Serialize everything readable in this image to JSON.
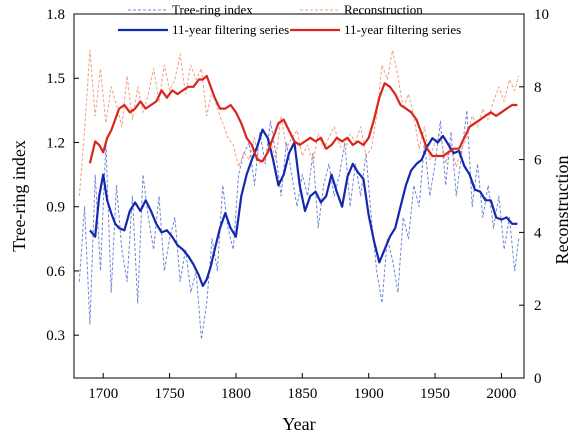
{
  "chart_data": {
    "type": "line",
    "xlabel": "Year",
    "ylabel_left": "Tree-ring index",
    "ylabel_right": "Reconstruction",
    "xlim": [
      1678,
      2017
    ],
    "ylim_left": [
      0.1,
      1.8
    ],
    "ylim_right": [
      0,
      10
    ],
    "x_ticks": [
      1700,
      1750,
      1800,
      1850,
      1900,
      1950,
      2000
    ],
    "y_ticks_left": [
      0.3,
      0.6,
      0.9,
      1.2,
      1.5,
      1.8
    ],
    "y_ticks_right": [
      0,
      2,
      4,
      6,
      8,
      10
    ],
    "grid": false,
    "legend_position": "top",
    "colors": {
      "tree_ring_dashed": "#6f86d6",
      "tree_ring_smooth": "#1427b0",
      "recon_dashed": "#f0a080",
      "recon_smooth": "#d9251c"
    },
    "series": [
      {
        "name": "Tree-ring index",
        "axis": "left",
        "style": "dashed",
        "x": [
          1682,
          1686,
          1690,
          1694,
          1698,
          1702,
          1706,
          1710,
          1714,
          1718,
          1722,
          1726,
          1730,
          1734,
          1738,
          1742,
          1746,
          1750,
          1754,
          1758,
          1762,
          1766,
          1770,
          1774,
          1778,
          1782,
          1786,
          1790,
          1794,
          1798,
          1802,
          1806,
          1810,
          1814,
          1818,
          1822,
          1826,
          1830,
          1834,
          1838,
          1842,
          1846,
          1850,
          1854,
          1858,
          1862,
          1866,
          1870,
          1874,
          1878,
          1882,
          1886,
          1890,
          1894,
          1898,
          1902,
          1906,
          1910,
          1914,
          1918,
          1922,
          1926,
          1930,
          1934,
          1938,
          1942,
          1946,
          1950,
          1954,
          1958,
          1962,
          1966,
          1970,
          1974,
          1978,
          1982,
          1986,
          1990,
          1994,
          1998,
          2002,
          2006,
          2010,
          2013
        ],
        "y": [
          0.55,
          0.9,
          0.35,
          1.05,
          0.6,
          1.2,
          0.5,
          1.0,
          0.7,
          0.55,
          0.95,
          0.45,
          1.05,
          0.85,
          0.7,
          0.95,
          0.6,
          0.75,
          0.85,
          0.55,
          0.7,
          0.5,
          0.6,
          0.28,
          0.45,
          0.75,
          0.6,
          1.0,
          0.8,
          0.7,
          1.05,
          1.15,
          1.2,
          1.0,
          1.25,
          1.1,
          1.3,
          1.15,
          0.95,
          1.2,
          1.05,
          0.9,
          1.05,
          0.95,
          1.15,
          0.8,
          1.0,
          1.1,
          0.95,
          1.05,
          1.2,
          0.9,
          1.1,
          0.95,
          1.15,
          0.85,
          0.6,
          0.45,
          0.75,
          0.65,
          0.5,
          0.85,
          0.75,
          1.0,
          0.9,
          1.2,
          0.95,
          1.1,
          1.3,
          1.0,
          1.25,
          0.95,
          1.15,
          1.35,
          0.9,
          1.1,
          0.85,
          1.0,
          0.8,
          0.95,
          0.7,
          0.85,
          0.6,
          0.75
        ]
      },
      {
        "name": "11-year filtering series",
        "axis": "left",
        "style": "solid",
        "x": [
          1690,
          1694,
          1697,
          1700,
          1703,
          1706,
          1709,
          1712,
          1716,
          1720,
          1724,
          1728,
          1732,
          1736,
          1740,
          1744,
          1748,
          1752,
          1756,
          1760,
          1764,
          1768,
          1772,
          1775,
          1778,
          1781,
          1784,
          1788,
          1792,
          1796,
          1800,
          1804,
          1808,
          1812,
          1816,
          1820,
          1824,
          1828,
          1832,
          1836,
          1840,
          1844,
          1848,
          1852,
          1856,
          1860,
          1864,
          1868,
          1872,
          1876,
          1880,
          1884,
          1888,
          1892,
          1896,
          1900,
          1904,
          1908,
          1912,
          1916,
          1920,
          1924,
          1928,
          1932,
          1936,
          1940,
          1944,
          1948,
          1952,
          1956,
          1960,
          1964,
          1968,
          1972,
          1976,
          1980,
          1984,
          1988,
          1992,
          1996,
          2000,
          2004,
          2008,
          2012
        ],
        "y": [
          0.79,
          0.76,
          0.95,
          1.05,
          0.93,
          0.87,
          0.82,
          0.8,
          0.79,
          0.88,
          0.92,
          0.88,
          0.93,
          0.88,
          0.82,
          0.78,
          0.79,
          0.76,
          0.72,
          0.7,
          0.67,
          0.63,
          0.58,
          0.53,
          0.56,
          0.62,
          0.7,
          0.8,
          0.87,
          0.8,
          0.76,
          0.95,
          1.05,
          1.12,
          1.18,
          1.26,
          1.22,
          1.12,
          1.0,
          1.05,
          1.15,
          1.2,
          1.0,
          0.88,
          0.95,
          0.97,
          0.92,
          0.95,
          1.05,
          0.97,
          0.9,
          1.04,
          1.1,
          1.06,
          1.03,
          0.86,
          0.74,
          0.64,
          0.7,
          0.76,
          0.8,
          0.9,
          1.0,
          1.07,
          1.1,
          1.12,
          1.18,
          1.22,
          1.2,
          1.23,
          1.19,
          1.15,
          1.16,
          1.09,
          1.05,
          0.98,
          0.97,
          0.93,
          0.93,
          0.85,
          0.84,
          0.85,
          0.82,
          0.82
        ]
      },
      {
        "name": "Reconstruction",
        "axis": "right",
        "style": "dashed",
        "x": [
          1682,
          1686,
          1690,
          1694,
          1698,
          1702,
          1706,
          1710,
          1714,
          1718,
          1722,
          1726,
          1730,
          1734,
          1738,
          1742,
          1746,
          1750,
          1754,
          1758,
          1762,
          1766,
          1770,
          1774,
          1778,
          1782,
          1786,
          1790,
          1794,
          1798,
          1802,
          1806,
          1810,
          1814,
          1818,
          1822,
          1826,
          1830,
          1834,
          1838,
          1842,
          1846,
          1850,
          1854,
          1858,
          1862,
          1866,
          1870,
          1874,
          1878,
          1882,
          1886,
          1890,
          1894,
          1898,
          1902,
          1906,
          1910,
          1914,
          1918,
          1922,
          1926,
          1930,
          1934,
          1938,
          1942,
          1946,
          1950,
          1954,
          1958,
          1962,
          1966,
          1970,
          1974,
          1978,
          1982,
          1986,
          1990,
          1994,
          1998,
          2002,
          2006,
          2010,
          2013
        ],
        "y": [
          5.0,
          6.8,
          9.0,
          7.2,
          8.5,
          7.0,
          8.0,
          7.5,
          6.9,
          8.3,
          7.1,
          8.0,
          7.3,
          7.8,
          8.5,
          7.6,
          8.6,
          7.9,
          8.2,
          8.9,
          7.8,
          8.6,
          8.2,
          8.5,
          7.2,
          7.9,
          7.4,
          7.0,
          6.6,
          6.4,
          5.8,
          6.2,
          6.0,
          6.6,
          5.9,
          6.1,
          6.5,
          6.0,
          7.2,
          6.3,
          6.6,
          6.8,
          6.1,
          6.4,
          5.9,
          6.7,
          6.3,
          6.6,
          6.9,
          6.4,
          6.2,
          6.7,
          6.5,
          6.9,
          6.1,
          6.3,
          7.2,
          8.6,
          8.2,
          9.0,
          8.3,
          7.4,
          7.8,
          7.2,
          6.3,
          6.9,
          6.0,
          6.5,
          6.7,
          5.9,
          6.4,
          5.8,
          6.3,
          6.6,
          7.2,
          6.9,
          7.4,
          7.1,
          7.6,
          8.0,
          7.6,
          8.2,
          7.9,
          8.3
        ]
      },
      {
        "name": "11-year filtering series",
        "axis": "right",
        "style": "solid",
        "x": [
          1690,
          1694,
          1697,
          1700,
          1703,
          1706,
          1709,
          1712,
          1716,
          1720,
          1724,
          1728,
          1732,
          1736,
          1740,
          1744,
          1748,
          1752,
          1756,
          1760,
          1764,
          1768,
          1772,
          1775,
          1778,
          1781,
          1784,
          1788,
          1792,
          1796,
          1800,
          1804,
          1808,
          1812,
          1816,
          1820,
          1824,
          1828,
          1832,
          1836,
          1840,
          1844,
          1848,
          1852,
          1856,
          1860,
          1864,
          1868,
          1872,
          1876,
          1880,
          1884,
          1888,
          1892,
          1896,
          1900,
          1904,
          1908,
          1912,
          1916,
          1920,
          1924,
          1928,
          1932,
          1936,
          1940,
          1944,
          1948,
          1952,
          1956,
          1960,
          1964,
          1968,
          1972,
          1976,
          1980,
          1984,
          1988,
          1992,
          1996,
          2000,
          2004,
          2008,
          2012
        ],
        "y": [
          5.9,
          6.5,
          6.4,
          6.2,
          6.6,
          6.8,
          7.1,
          7.4,
          7.5,
          7.3,
          7.4,
          7.6,
          7.4,
          7.5,
          7.6,
          7.9,
          7.7,
          7.9,
          7.8,
          7.9,
          8.0,
          8.0,
          8.2,
          8.2,
          8.3,
          8.0,
          7.7,
          7.4,
          7.4,
          7.5,
          7.3,
          7.0,
          6.6,
          6.4,
          6.0,
          5.95,
          6.2,
          6.6,
          7.0,
          7.1,
          6.8,
          6.5,
          6.4,
          6.5,
          6.6,
          6.5,
          6.6,
          6.3,
          6.4,
          6.6,
          6.5,
          6.6,
          6.4,
          6.5,
          6.4,
          6.6,
          7.1,
          7.7,
          8.1,
          8.0,
          7.8,
          7.5,
          7.4,
          7.3,
          7.1,
          6.7,
          6.3,
          6.1,
          6.1,
          6.1,
          6.2,
          6.3,
          6.3,
          6.6,
          6.9,
          7.0,
          7.1,
          7.2,
          7.3,
          7.2,
          7.3,
          7.4,
          7.5,
          7.5
        ]
      }
    ]
  }
}
